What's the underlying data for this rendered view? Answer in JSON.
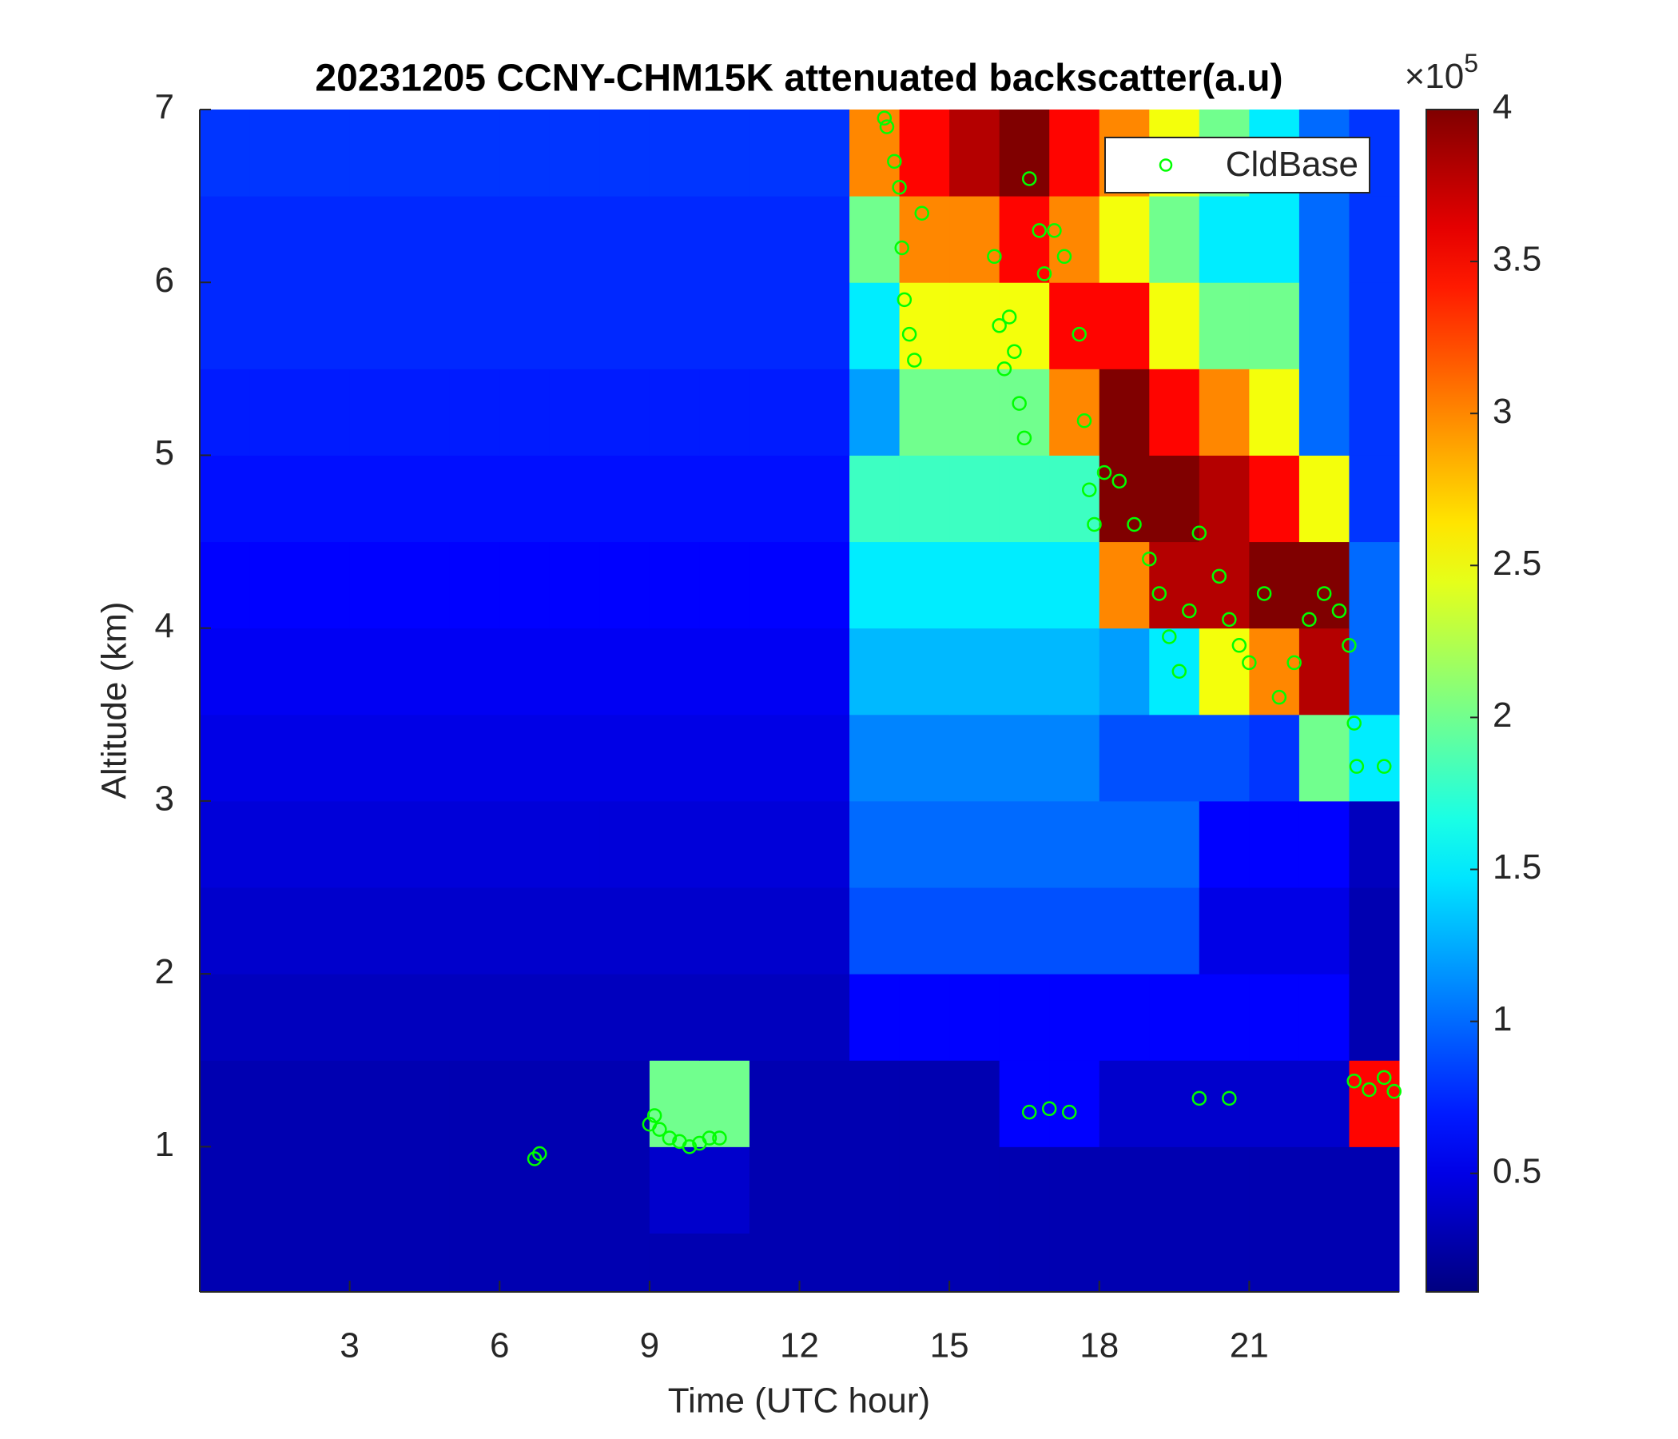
{
  "chart_data": {
    "type": "heatmap",
    "title": "20231205 CCNY-CHM15K attenuated backscatter(a.u)",
    "x_label": "Time (UTC hour)",
    "y_label": "Altitude (km)",
    "xlim": [
      0,
      24
    ],
    "ylim": [
      0.16,
      7
    ],
    "xticks": [
      3,
      6,
      9,
      12,
      15,
      18,
      21
    ],
    "yticks": [
      1,
      2,
      3,
      4,
      5,
      6,
      7
    ],
    "colormap": "jet",
    "clim": [
      0.11,
      4
    ],
    "colorbar_ticks": [
      0.5,
      1,
      1.5,
      2,
      2.5,
      3,
      3.5,
      4
    ],
    "colorbar_multiplier": {
      "base": "×10",
      "exponent": "5"
    },
    "xbins": [
      0,
      1,
      2,
      3,
      4,
      5,
      6,
      7,
      8,
      9,
      10,
      11,
      12,
      13,
      14,
      15,
      16,
      17,
      18,
      19,
      20,
      21,
      22,
      23,
      24
    ],
    "ybins": [
      0.16,
      0.5,
      1,
      1.5,
      2,
      2.5,
      3,
      3.5,
      4,
      4.5,
      5,
      5.5,
      6,
      6.5,
      7
    ],
    "z": [
      [
        0.3,
        0.3,
        0.3,
        0.3,
        0.3,
        0.3,
        0.3,
        0.3,
        0.3,
        0.3,
        0.3,
        0.3,
        0.3,
        0.3,
        0.3,
        0.3,
        0.3,
        0.3,
        0.3,
        0.3,
        0.3,
        0.3,
        0.3,
        0.3
      ],
      [
        0.3,
        0.3,
        0.3,
        0.3,
        0.3,
        0.3,
        0.3,
        0.3,
        0.3,
        0.4,
        0.4,
        0.3,
        0.3,
        0.3,
        0.3,
        0.3,
        0.3,
        0.3,
        0.3,
        0.3,
        0.3,
        0.3,
        0.3,
        0.3
      ],
      [
        0.3,
        0.3,
        0.3,
        0.3,
        0.3,
        0.3,
        0.3,
        0.3,
        0.3,
        2.0,
        2.0,
        0.3,
        0.3,
        0.3,
        0.3,
        0.3,
        0.6,
        0.6,
        0.4,
        0.4,
        0.4,
        0.4,
        0.4,
        3.5
      ],
      [
        0.35,
        0.35,
        0.35,
        0.35,
        0.35,
        0.35,
        0.35,
        0.35,
        0.35,
        0.35,
        0.35,
        0.35,
        0.35,
        0.6,
        0.6,
        0.6,
        0.6,
        0.6,
        0.6,
        0.6,
        0.6,
        0.6,
        0.6,
        0.3
      ],
      [
        0.4,
        0.4,
        0.4,
        0.4,
        0.4,
        0.4,
        0.4,
        0.4,
        0.4,
        0.4,
        0.4,
        0.4,
        0.4,
        0.9,
        0.9,
        0.9,
        0.9,
        0.9,
        0.9,
        0.9,
        0.5,
        0.5,
        0.5,
        0.3
      ],
      [
        0.45,
        0.45,
        0.45,
        0.45,
        0.45,
        0.45,
        0.45,
        0.45,
        0.45,
        0.45,
        0.45,
        0.45,
        0.45,
        1.0,
        1.0,
        1.0,
        1.0,
        1.0,
        1.0,
        1.0,
        0.6,
        0.6,
        0.6,
        0.35
      ],
      [
        0.5,
        0.5,
        0.5,
        0.5,
        0.5,
        0.5,
        0.5,
        0.5,
        0.5,
        0.5,
        0.5,
        0.5,
        0.5,
        1.1,
        1.1,
        1.1,
        1.1,
        1.1,
        0.9,
        0.9,
        0.9,
        0.8,
        2.0,
        1.5
      ],
      [
        0.55,
        0.55,
        0.55,
        0.55,
        0.55,
        0.55,
        0.55,
        0.55,
        0.55,
        0.55,
        0.55,
        0.55,
        0.55,
        1.3,
        1.3,
        1.3,
        1.3,
        1.3,
        1.2,
        1.5,
        2.5,
        3.0,
        3.8,
        1.0
      ],
      [
        0.6,
        0.6,
        0.6,
        0.6,
        0.6,
        0.6,
        0.6,
        0.6,
        0.6,
        0.6,
        0.6,
        0.6,
        0.6,
        1.5,
        1.5,
        1.5,
        1.5,
        1.5,
        3.0,
        3.8,
        3.8,
        4,
        4,
        1.0
      ],
      [
        0.65,
        0.65,
        0.65,
        0.65,
        0.65,
        0.65,
        0.65,
        0.65,
        0.65,
        0.65,
        0.65,
        0.65,
        0.65,
        1.8,
        1.8,
        1.8,
        1.8,
        1.8,
        4,
        4,
        3.8,
        3.5,
        2.5,
        0.8
      ],
      [
        0.7,
        0.7,
        0.7,
        0.7,
        0.7,
        0.7,
        0.7,
        0.7,
        0.7,
        0.7,
        0.7,
        0.7,
        0.7,
        1.2,
        2.0,
        2.0,
        2.0,
        3.0,
        4,
        3.5,
        3.0,
        2.5,
        1.0,
        0.8
      ],
      [
        0.75,
        0.75,
        0.75,
        0.75,
        0.75,
        0.75,
        0.75,
        0.75,
        0.75,
        0.75,
        0.75,
        0.75,
        0.75,
        1.5,
        2.5,
        2.5,
        2.5,
        3.5,
        3.5,
        2.5,
        2.0,
        2.0,
        1.0,
        0.8
      ],
      [
        0.75,
        0.75,
        0.75,
        0.75,
        0.75,
        0.75,
        0.75,
        0.75,
        0.75,
        0.75,
        0.75,
        0.75,
        0.75,
        2.0,
        3.0,
        3.0,
        3.5,
        3.0,
        2.5,
        2.0,
        1.5,
        1.5,
        1.0,
        0.8
      ],
      [
        0.8,
        0.8,
        0.8,
        0.8,
        0.8,
        0.8,
        0.8,
        0.8,
        0.8,
        0.8,
        0.8,
        0.8,
        0.8,
        3.0,
        3.5,
        3.8,
        4,
        3.5,
        3.0,
        2.5,
        2.0,
        1.5,
        1.0,
        0.8
      ]
    ],
    "series": [
      {
        "name": "CldBase",
        "color": "#00ff00",
        "marker": "circle",
        "x": [
          6.7,
          6.8,
          9.0,
          9.1,
          9.2,
          9.4,
          9.6,
          9.8,
          10.0,
          10.2,
          10.4,
          13.7,
          13.75,
          13.9,
          14.0,
          14.05,
          14.1,
          14.2,
          14.3,
          14.45,
          15.9,
          16.0,
          16.1,
          16.2,
          16.3,
          16.4,
          16.5,
          16.6,
          16.8,
          16.9,
          17.1,
          17.3,
          17.6,
          17.7,
          17.8,
          17.9,
          18.1,
          18.4,
          18.7,
          19.0,
          19.2,
          19.4,
          19.6,
          19.8,
          20.0,
          20.4,
          20.6,
          20.8,
          21.0,
          21.3,
          21.6,
          21.9,
          22.2,
          22.5,
          22.8,
          23.0,
          23.1,
          23.15,
          23.7,
          16.6,
          17.0,
          17.4,
          20.0,
          20.6,
          23.1,
          23.4,
          23.7,
          23.9
        ],
        "y": [
          0.93,
          0.96,
          1.13,
          1.18,
          1.1,
          1.05,
          1.03,
          1.0,
          1.02,
          1.05,
          1.05,
          6.95,
          6.9,
          6.7,
          6.55,
          6.2,
          5.9,
          5.7,
          5.55,
          6.4,
          6.15,
          5.75,
          5.5,
          5.8,
          5.6,
          5.3,
          5.1,
          6.6,
          6.3,
          6.05,
          6.3,
          6.15,
          5.7,
          5.2,
          4.8,
          4.6,
          4.9,
          4.85,
          4.6,
          4.4,
          4.2,
          3.95,
          3.75,
          4.1,
          4.55,
          4.3,
          4.05,
          3.9,
          3.8,
          4.2,
          3.6,
          3.8,
          4.05,
          4.2,
          4.1,
          3.9,
          3.45,
          3.2,
          3.2,
          1.2,
          1.22,
          1.2,
          1.28,
          1.28,
          1.38,
          1.33,
          1.4,
          1.32
        ]
      }
    ],
    "legend": "northeast"
  }
}
